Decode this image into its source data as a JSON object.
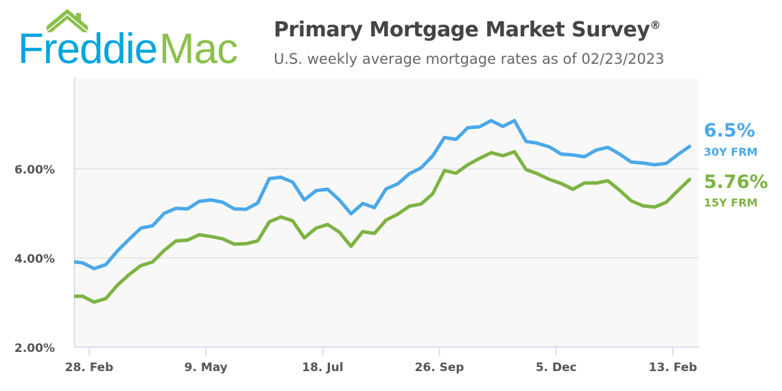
{
  "logo": {
    "text_part1": "Freddie",
    "text_part2": "Mac",
    "colors": {
      "blue": "#00a6e0",
      "green": "#8cc04b"
    }
  },
  "header": {
    "title": "Primary Mortgage Market Survey",
    "title_mark": "®",
    "subtitle": "U.S. weekly average mortgage rates as of 02/23/2023"
  },
  "chart_data": {
    "type": "line",
    "title": "Primary Mortgage Market Survey®",
    "subtitle": "U.S. weekly average mortgage rates as of 02/23/2023",
    "xlabel": "",
    "ylabel": "",
    "ylim": [
      2,
      8
    ],
    "xlim": [
      "2022-02-20",
      "2023-02-28"
    ],
    "yticks": [
      2,
      4,
      6
    ],
    "ytick_labels": [
      "2.00%",
      "4.00%",
      "6.00%"
    ],
    "xticks": [
      "2022-02-28",
      "2022-05-09",
      "2022-07-18",
      "2022-09-26",
      "2022-12-05",
      "2023-02-13"
    ],
    "xtick_labels": [
      "28. Feb",
      "9. May",
      "18. Jul",
      "26. Sep",
      "5. Dec",
      "13. Feb"
    ],
    "grid": true,
    "x": [
      "2022-02-17",
      "2022-02-24",
      "2022-03-03",
      "2022-03-10",
      "2022-03-17",
      "2022-03-24",
      "2022-03-31",
      "2022-04-07",
      "2022-04-14",
      "2022-04-21",
      "2022-04-28",
      "2022-05-05",
      "2022-05-12",
      "2022-05-19",
      "2022-05-26",
      "2022-06-02",
      "2022-06-09",
      "2022-06-16",
      "2022-06-23",
      "2022-06-30",
      "2022-07-07",
      "2022-07-14",
      "2022-07-21",
      "2022-07-28",
      "2022-08-04",
      "2022-08-11",
      "2022-08-18",
      "2022-08-25",
      "2022-09-01",
      "2022-09-08",
      "2022-09-15",
      "2022-09-22",
      "2022-09-29",
      "2022-10-06",
      "2022-10-13",
      "2022-10-20",
      "2022-10-27",
      "2022-11-03",
      "2022-11-10",
      "2022-11-17",
      "2022-11-23",
      "2022-12-01",
      "2022-12-08",
      "2022-12-15",
      "2022-12-22",
      "2022-12-29",
      "2023-01-05",
      "2023-01-12",
      "2023-01-19",
      "2023-01-26",
      "2023-02-02",
      "2023-02-09",
      "2023-02-16",
      "2023-02-23"
    ],
    "series": [
      {
        "name": "30Y FRM",
        "color": "#4aa8e8",
        "last_label": "6.5%",
        "values": [
          3.92,
          3.89,
          3.76,
          3.85,
          4.16,
          4.42,
          4.67,
          4.72,
          5.0,
          5.11,
          5.1,
          5.27,
          5.3,
          5.25,
          5.1,
          5.09,
          5.23,
          5.78,
          5.81,
          5.7,
          5.3,
          5.51,
          5.54,
          5.3,
          4.99,
          5.22,
          5.13,
          5.55,
          5.66,
          5.89,
          6.02,
          6.29,
          6.7,
          6.66,
          6.92,
          6.94,
          7.08,
          6.95,
          7.08,
          6.61,
          6.58,
          6.49,
          6.33,
          6.31,
          6.27,
          6.42,
          6.48,
          6.33,
          6.15,
          6.13,
          6.09,
          6.12,
          6.32,
          6.5
        ]
      },
      {
        "name": "15Y FRM",
        "color": "#7db342",
        "last_label": "5.76%",
        "values": [
          3.14,
          3.14,
          3.01,
          3.09,
          3.39,
          3.63,
          3.83,
          3.91,
          4.17,
          4.38,
          4.4,
          4.52,
          4.48,
          4.43,
          4.31,
          4.32,
          4.38,
          4.81,
          4.92,
          4.83,
          4.45,
          4.67,
          4.75,
          4.58,
          4.26,
          4.59,
          4.55,
          4.85,
          4.98,
          5.16,
          5.21,
          5.44,
          5.96,
          5.9,
          6.09,
          6.23,
          6.36,
          6.29,
          6.38,
          5.98,
          5.9,
          5.76,
          5.67,
          5.54,
          5.68,
          5.68,
          5.73,
          5.52,
          5.28,
          5.17,
          5.14,
          5.25,
          5.51,
          5.76
        ]
      }
    ]
  }
}
